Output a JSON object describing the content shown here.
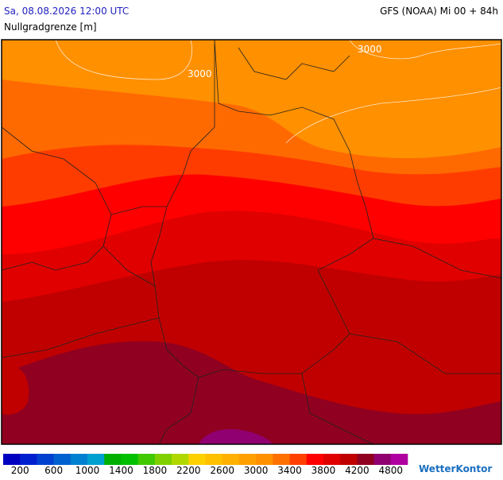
{
  "header": {
    "left": "Sa, 08.08.2026 12:00 UTC",
    "right": "GFS (NOAA) Mi 00 + 84h",
    "subtitle": "Nullgradgrenze [m]"
  },
  "map": {
    "contour_labels": [
      "3000",
      "3000"
    ]
  },
  "legend": {
    "colors": [
      "#0000c0",
      "#0020d0",
      "#0040d0",
      "#0060d0",
      "#0080d0",
      "#00a0d0",
      "#00b000",
      "#00c000",
      "#40c800",
      "#80d000",
      "#b0d800",
      "#ffd000",
      "#ffc000",
      "#ffb000",
      "#ffa000",
      "#ff9000",
      "#ff7000",
      "#ff4000",
      "#ff0000",
      "#e00000",
      "#c00000",
      "#900020",
      "#900070",
      "#b000a0"
    ],
    "labels": [
      200,
      600,
      1000,
      1400,
      1800,
      2200,
      2600,
      3000,
      3400,
      3800,
      4200,
      4800
    ]
  },
  "brand": "WetterKontor"
}
